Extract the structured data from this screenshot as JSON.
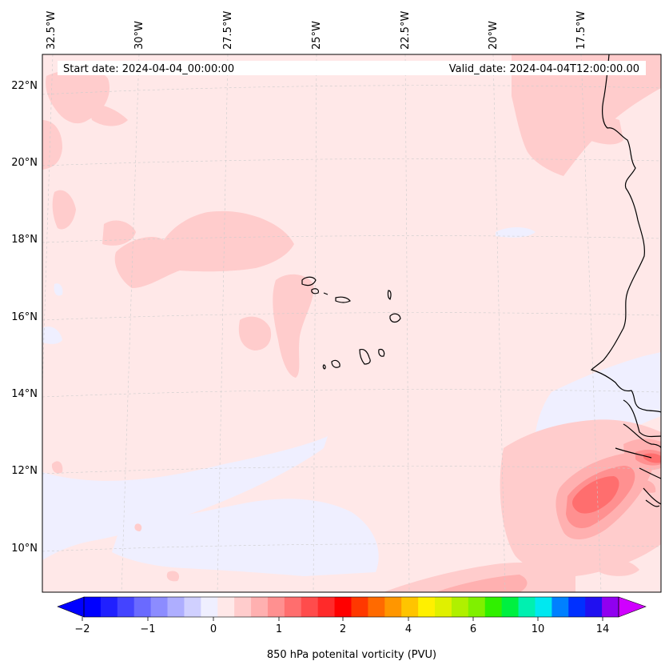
{
  "header": {
    "start_date": "Start date: 2024-04-04_00:00:00",
    "valid_date": "Valid_date: 2024-04-04T12:00:00.00"
  },
  "axes": {
    "lon_labels": [
      "32.5°W",
      "30°W",
      "27.5°W",
      "25°W",
      "22.5°W",
      "20°W",
      "17.5°W"
    ],
    "lat_labels": [
      "22°N",
      "20°N",
      "18°N",
      "16°N",
      "14°N",
      "12°N",
      "10°N"
    ]
  },
  "colorbar": {
    "title": "850 hPa potenital vorticity (PVU)",
    "tick_labels": [
      "−2",
      "−1",
      "0",
      "1",
      "2",
      "4",
      "6",
      "10",
      "14"
    ],
    "colors": [
      "#0000ff",
      "#2020ff",
      "#4444ff",
      "#6a6aff",
      "#8c8cff",
      "#aeaeff",
      "#d0d0ff",
      "#efefff",
      "#ffe8e8",
      "#ffcccc",
      "#ffb0b0",
      "#ff9090",
      "#ff6e6e",
      "#ff4c4c",
      "#ff2a2a",
      "#ff0000",
      "#ff3800",
      "#ff6a00",
      "#ff9600",
      "#ffc400",
      "#fff000",
      "#e0f000",
      "#b0f000",
      "#80f000",
      "#30f000",
      "#00f040",
      "#00f0b0",
      "#00e8f0",
      "#0080ff",
      "#0030ff",
      "#2010f0",
      "#9000f0"
    ]
  },
  "colors": {
    "background_field": "#ffe8e8",
    "light_pink": "#ffcccc",
    "pink": "#ffb0b0",
    "salmon": "#ff9090",
    "red_core": "#ff6e6e",
    "light_blue": "#efefff",
    "coastline": "#000000",
    "gridline": "#cccccc"
  }
}
